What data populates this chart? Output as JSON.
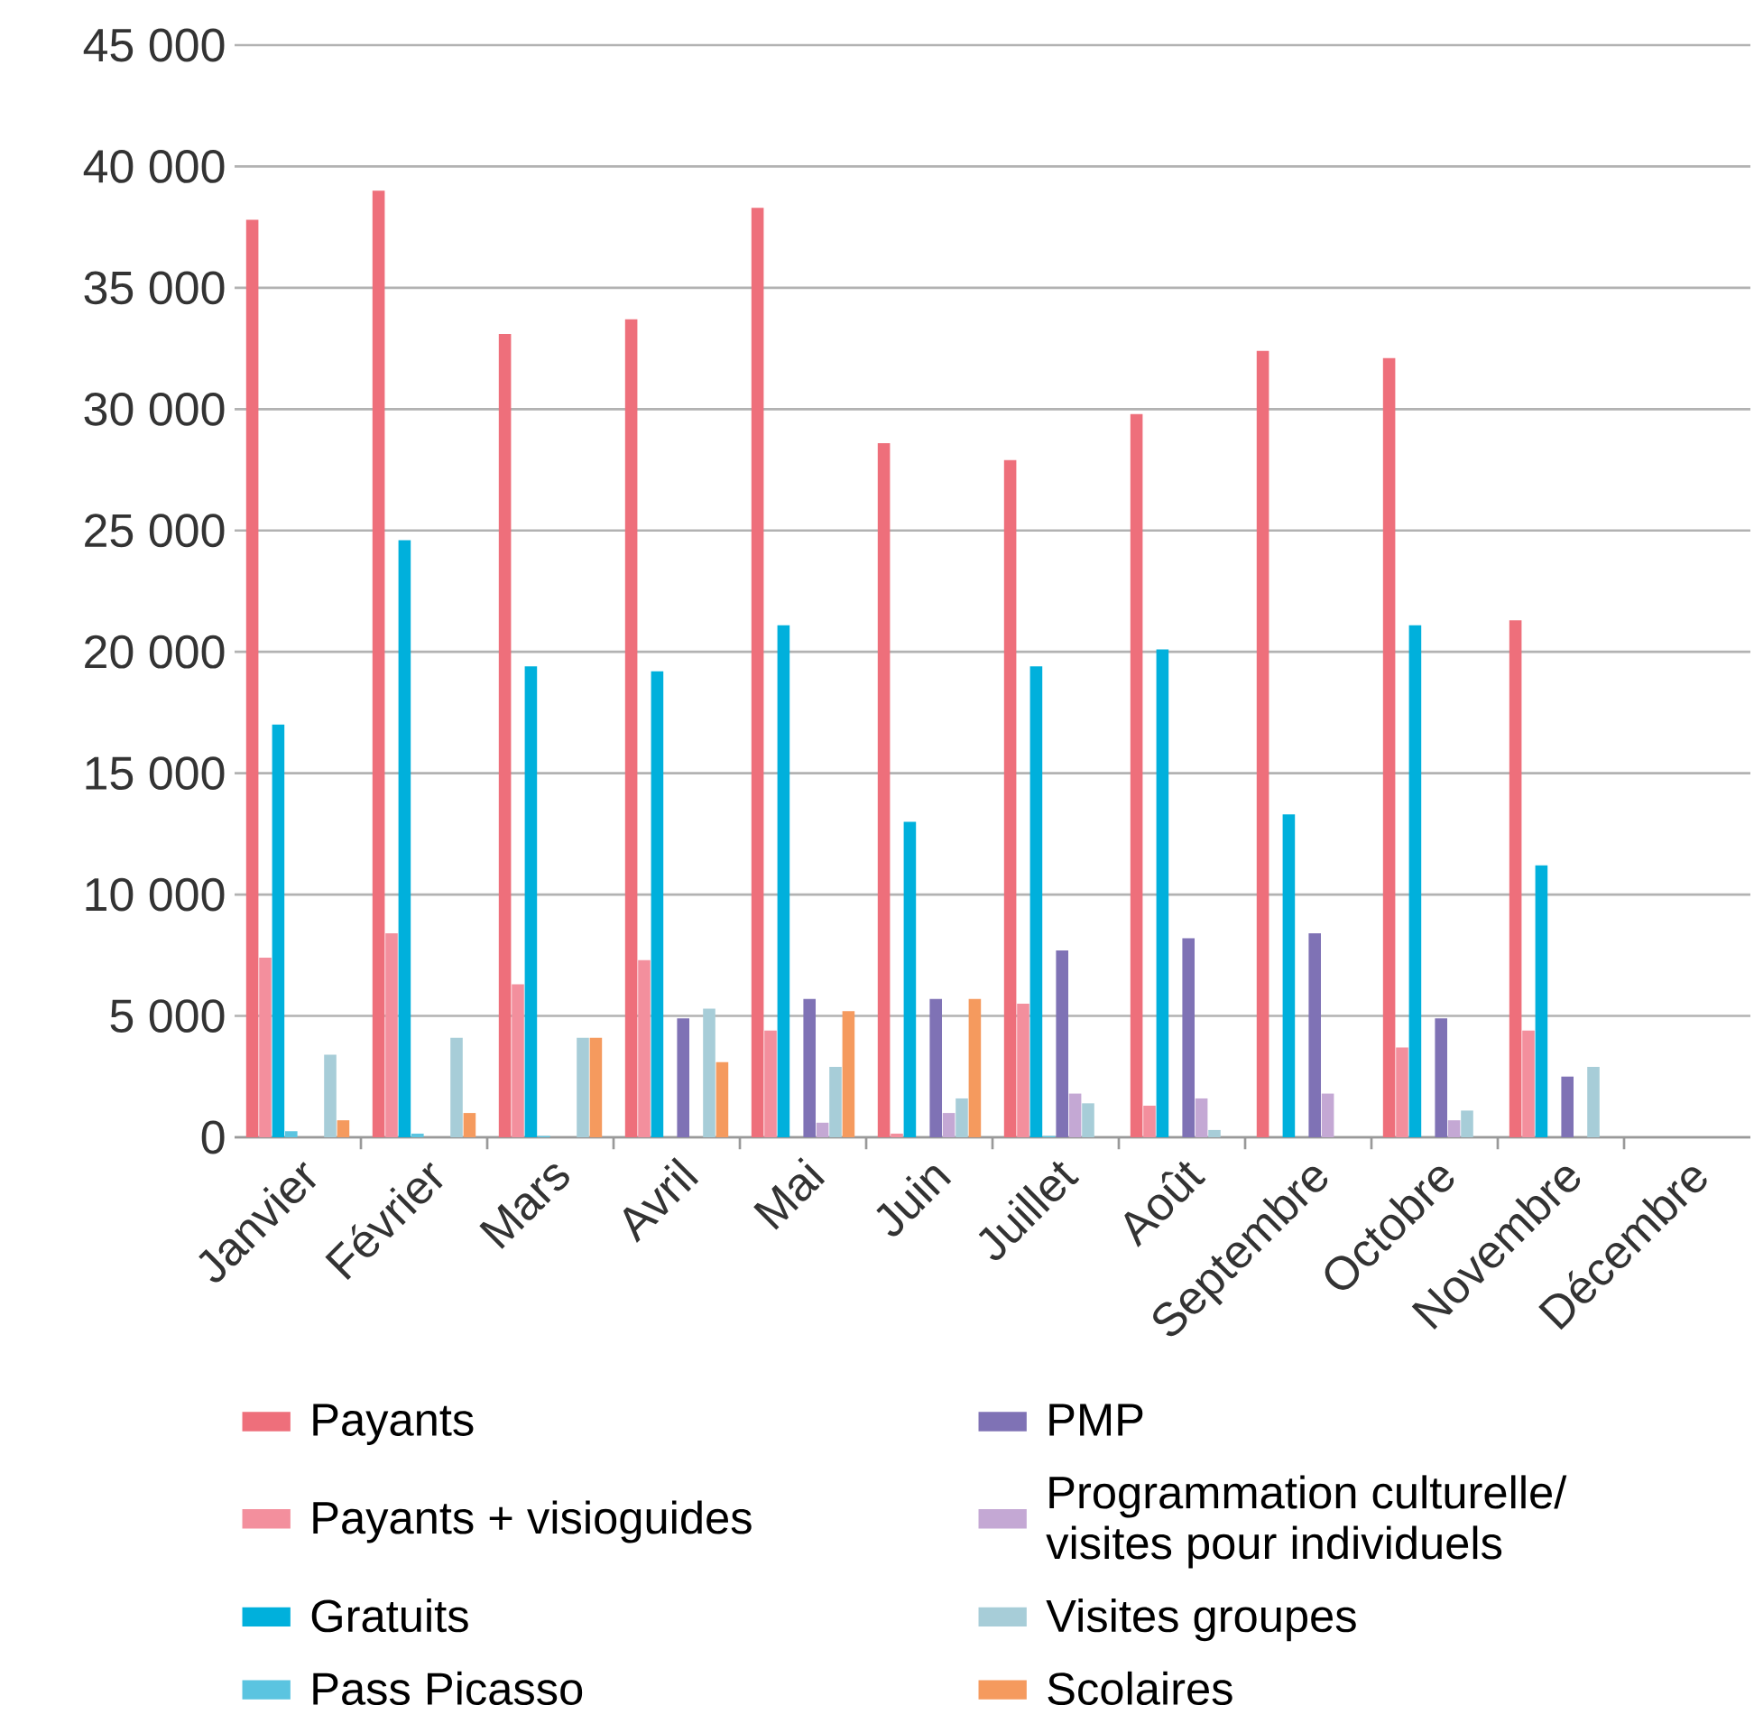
{
  "chart_data": {
    "type": "bar",
    "categories": [
      "Janvier",
      "Février",
      "Mars",
      "Avril",
      "Mai",
      "Juin",
      "Juillet",
      "Août",
      "Septembre",
      "Octobre",
      "Novembre",
      "Décembre"
    ],
    "series": [
      {
        "name": "Payants",
        "color": "#ee6f7b",
        "values": [
          37800,
          39000,
          33100,
          33700,
          38300,
          28600,
          27900,
          29800,
          32400,
          32100,
          21300,
          null
        ]
      },
      {
        "name": "Payants + visioguides",
        "color": "#f38f9d",
        "values": [
          7400,
          8400,
          6300,
          7300,
          4400,
          150,
          5500,
          1300,
          null,
          3700,
          4400,
          null
        ]
      },
      {
        "name": "Gratuits",
        "color": "#00b0dc",
        "values": [
          17000,
          24600,
          19400,
          19200,
          21100,
          13000,
          19400,
          20100,
          13300,
          21100,
          11200,
          null
        ]
      },
      {
        "name": "Pass Picasso",
        "color": "#5bc4e0",
        "values": [
          250,
          150,
          50,
          null,
          null,
          null,
          50,
          null,
          null,
          null,
          null,
          null
        ]
      },
      {
        "name": "PMP",
        "color": "#7f72b5",
        "values": [
          null,
          null,
          null,
          4900,
          5700,
          5700,
          7700,
          8200,
          8400,
          4900,
          2500,
          null
        ]
      },
      {
        "name": "Programmation culturelle/ visites pour individuels",
        "color": "#c4a8d4",
        "values": [
          null,
          null,
          null,
          null,
          600,
          1000,
          1800,
          1600,
          1800,
          700,
          null,
          null
        ]
      },
      {
        "name": "Visites groupes",
        "color": "#a7cdd8",
        "values": [
          3400,
          4100,
          4100,
          5300,
          2900,
          1600,
          1400,
          300,
          null,
          1100,
          2900,
          null
        ]
      },
      {
        "name": "Scolaires",
        "color": "#f59a5e",
        "values": [
          700,
          1000,
          4100,
          3100,
          5200,
          5700,
          null,
          null,
          null,
          null,
          null,
          null
        ]
      }
    ],
    "ylim": [
      0,
      45000
    ],
    "yticks": [
      {
        "value": 0,
        "label": "0"
      },
      {
        "value": 5000,
        "label": "5 000"
      },
      {
        "value": 10000,
        "label": "10 000"
      },
      {
        "value": 15000,
        "label": "15 000"
      },
      {
        "value": 20000,
        "label": "20 000"
      },
      {
        "value": 25000,
        "label": "25 000"
      },
      {
        "value": 30000,
        "label": "30 000"
      },
      {
        "value": 35000,
        "label": "35 000"
      },
      {
        "value": 40000,
        "label": "40 000"
      },
      {
        "value": 45000,
        "label": "45 000"
      }
    ],
    "grid": "y",
    "legend": "bottom"
  }
}
